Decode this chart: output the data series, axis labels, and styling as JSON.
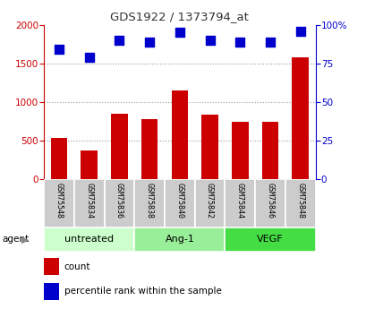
{
  "title": "GDS1922 / 1373794_at",
  "samples": [
    "GSM75548",
    "GSM75834",
    "GSM75836",
    "GSM75838",
    "GSM75840",
    "GSM75842",
    "GSM75844",
    "GSM75846",
    "GSM75848"
  ],
  "counts": [
    530,
    370,
    850,
    775,
    1150,
    840,
    740,
    740,
    1580
  ],
  "percentiles": [
    84,
    79,
    90,
    89,
    95,
    90,
    89,
    89,
    96
  ],
  "groups": [
    {
      "label": "untreated",
      "indices": [
        0,
        1,
        2
      ],
      "color": "#ccffcc"
    },
    {
      "label": "Ang-1",
      "indices": [
        3,
        4,
        5
      ],
      "color": "#99ee99"
    },
    {
      "label": "VEGF",
      "indices": [
        6,
        7,
        8
      ],
      "color": "#44dd44"
    }
  ],
  "bar_color": "#cc0000",
  "dot_color": "#0000cc",
  "ylim_left": [
    0,
    2000
  ],
  "ylim_right": [
    0,
    100
  ],
  "yticks_left": [
    0,
    500,
    1000,
    1500,
    2000
  ],
  "yticks_right": [
    0,
    25,
    50,
    75,
    100
  ],
  "yticklabels_right": [
    "0",
    "25",
    "50",
    "75",
    "100%"
  ],
  "bar_width": 0.55,
  "dot_size": 45,
  "grid_color": "#999999",
  "sample_bg_color": "#cccccc",
  "legend_count_color": "#cc0000",
  "legend_pct_color": "#0000cc",
  "legend_count_label": "count",
  "legend_pct_label": "percentile rank within the sample",
  "agent_label": "agent",
  "title_color": "#333333",
  "left_axis_color": "#cc0000",
  "right_axis_color": "#0000cc"
}
